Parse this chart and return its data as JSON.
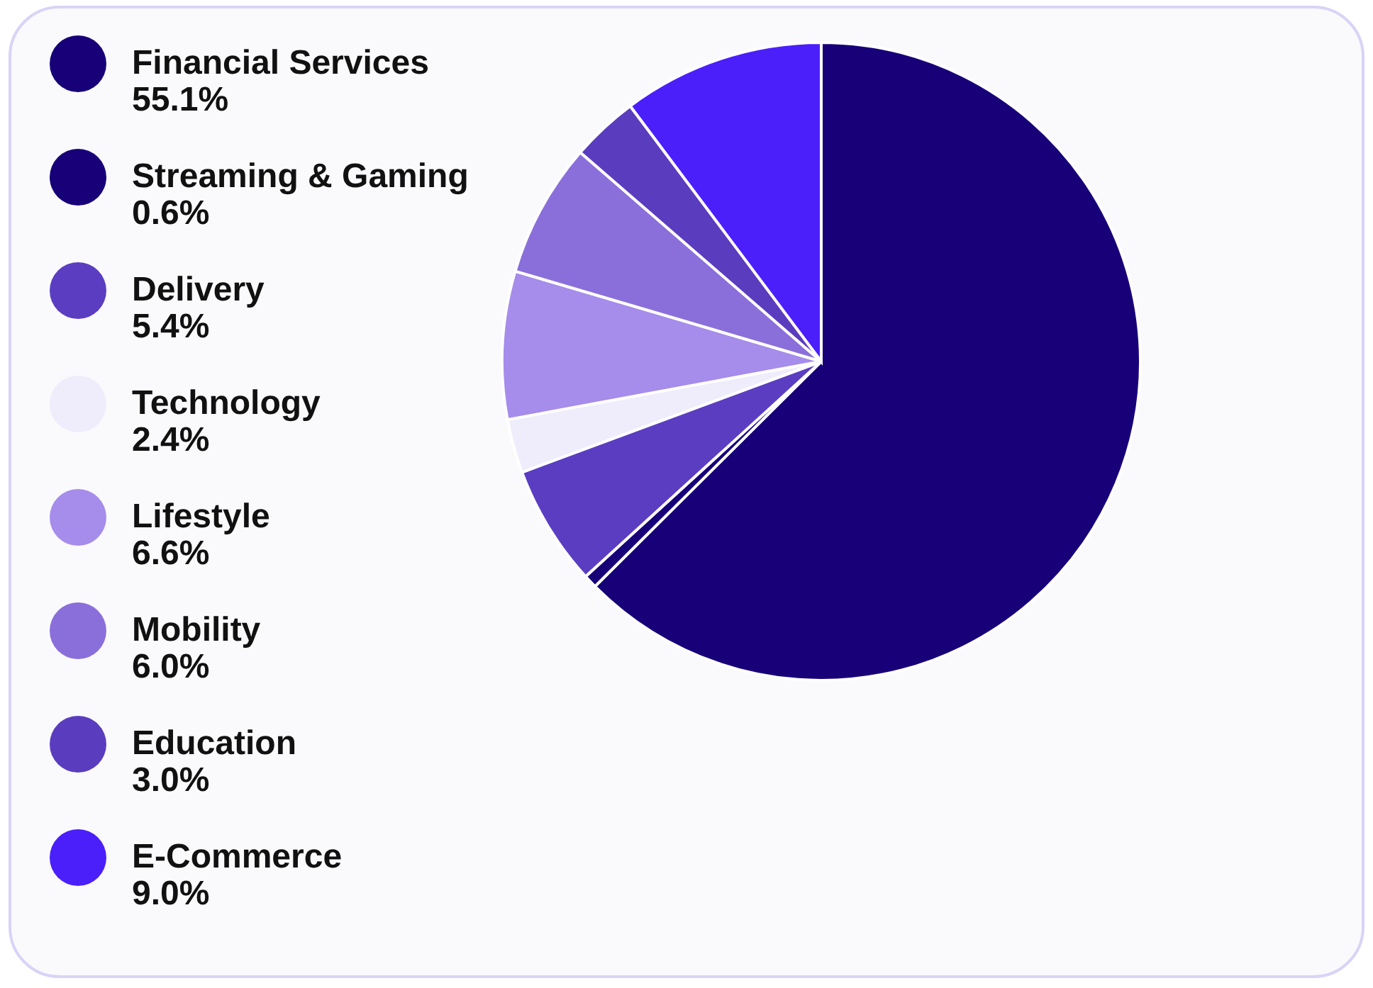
{
  "chart_data": {
    "type": "pie",
    "categories": [
      "Financial Services",
      "Streaming & Gaming",
      "Delivery",
      "Technology",
      "Lifestyle",
      "Mobility",
      "Education",
      "E-Commerce"
    ],
    "values": [
      55.1,
      0.6,
      5.4,
      2.4,
      6.6,
      6.0,
      3.0,
      9.0
    ],
    "value_labels": [
      "55.1%",
      "0.6%",
      "5.4%",
      "2.4%",
      "6.6%",
      "6.0%",
      "3.0%",
      "9.0%"
    ],
    "colors": [
      "#170078",
      "#170078",
      "#5b3dc2",
      "#efecfb",
      "#a68ceb",
      "#8a6fdb",
      "#5a3cbf",
      "#4a1ffa"
    ],
    "legend": "left"
  }
}
